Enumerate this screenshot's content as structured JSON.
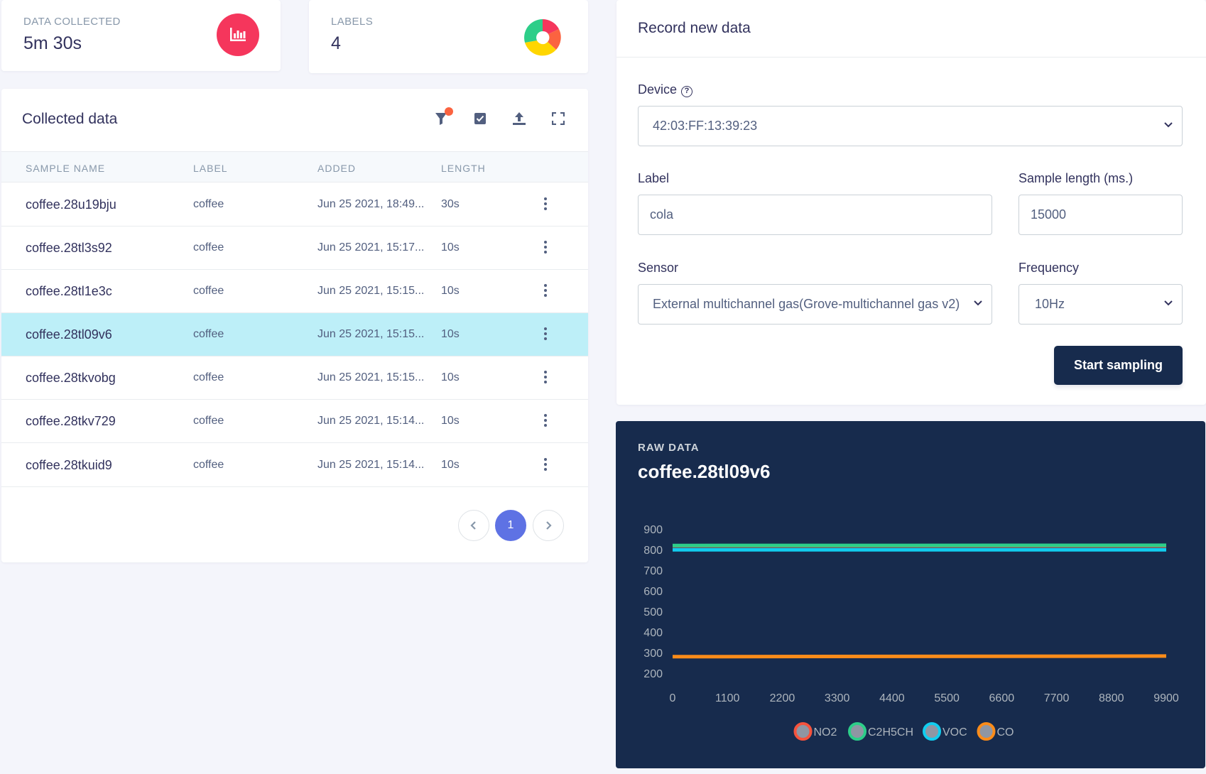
{
  "stats": {
    "data_collected_label": "DATA COLLECTED",
    "data_collected_value": "5m 30s",
    "labels_label": "LABELS",
    "labels_value": "4"
  },
  "collected": {
    "title": "Collected data",
    "columns": [
      "SAMPLE NAME",
      "LABEL",
      "ADDED",
      "LENGTH"
    ],
    "rows": [
      {
        "name": "coffee.28u19bju",
        "label": "coffee",
        "added": "Jun 25 2021, 18:49...",
        "length": "30s"
      },
      {
        "name": "coffee.28tl3s92",
        "label": "coffee",
        "added": "Jun 25 2021, 15:17...",
        "length": "10s"
      },
      {
        "name": "coffee.28tl1e3c",
        "label": "coffee",
        "added": "Jun 25 2021, 15:15...",
        "length": "10s"
      },
      {
        "name": "coffee.28tl09v6",
        "label": "coffee",
        "added": "Jun 25 2021, 15:15...",
        "length": "10s"
      },
      {
        "name": "coffee.28tkvobg",
        "label": "coffee",
        "added": "Jun 25 2021, 15:15...",
        "length": "10s"
      },
      {
        "name": "coffee.28tkv729",
        "label": "coffee",
        "added": "Jun 25 2021, 15:14...",
        "length": "10s"
      },
      {
        "name": "coffee.28tkuid9",
        "label": "coffee",
        "added": "Jun 25 2021, 15:14...",
        "length": "10s"
      }
    ],
    "selected_row": 3,
    "current_page": "1"
  },
  "record": {
    "title": "Record new data",
    "device_label": "Device",
    "device_value": "42:03:FF:13:39:23",
    "help_glyph": "?",
    "label_label": "Label",
    "label_value": "cola",
    "sample_length_label": "Sample length (ms.)",
    "sample_length_value": "15000",
    "sensor_label": "Sensor",
    "sensor_value": "External multichannel gas(Grove-multichannel gas v2)",
    "frequency_label": "Frequency",
    "frequency_value": "10Hz",
    "start_button": "Start sampling"
  },
  "raw": {
    "label": "RAW DATA",
    "sample_name": "coffee.28tl09v6"
  },
  "colors": {
    "no2": "#f5533d",
    "c2h5ch": "#2dce89",
    "voc": "#11cdef",
    "co": "#fb8c1a",
    "primary": "#5e72e4",
    "danger": "#f5365c"
  },
  "chart_data": {
    "type": "line",
    "x_ticks": [
      0,
      1100,
      2200,
      3300,
      4400,
      5500,
      6600,
      7700,
      8800,
      9900
    ],
    "y_ticks": [
      200,
      300,
      400,
      500,
      600,
      700,
      800,
      900
    ],
    "xlim": [
      0,
      9900
    ],
    "ylim": [
      200,
      900
    ],
    "series": [
      {
        "name": "NO2",
        "color": "#f5533d",
        "x": [
          0,
          9900
        ],
        "values": [
          818,
          818
        ]
      },
      {
        "name": "C2H5CH",
        "color": "#2dce89",
        "x": [
          0,
          9900
        ],
        "values": [
          820,
          821
        ]
      },
      {
        "name": "VOC",
        "color": "#11cdef",
        "x": [
          0,
          9900
        ],
        "values": [
          799,
          799
        ]
      },
      {
        "name": "CO",
        "color": "#fb8c1a",
        "x": [
          0,
          9900
        ],
        "values": [
          280,
          283
        ]
      }
    ],
    "legend_position": "bottom"
  }
}
